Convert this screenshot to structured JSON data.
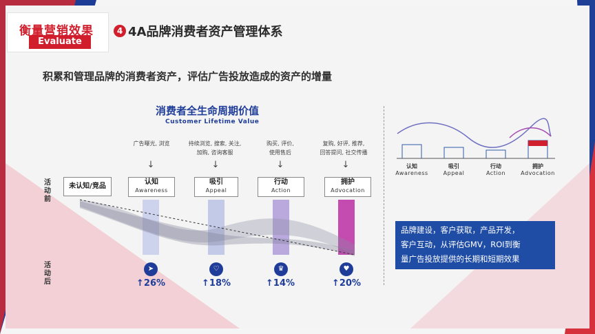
{
  "logo": {
    "cn": "衡量营销效果",
    "en": "Evaluate"
  },
  "header": {
    "number": "4",
    "title": "4A品牌消费者资产管理体系"
  },
  "subtitle": "积累和管理品牌的消费者资产，评估广告投放造成的资产的增量",
  "clv": {
    "title_cn": "消费者全生命周期价值",
    "title_en": "Customer Lifetime Value"
  },
  "side_labels": {
    "before": "活动前",
    "after": "活动后"
  },
  "unaware_label": "未认知/竞品",
  "stages": [
    {
      "cn": "认知",
      "en": "Awareness",
      "desc1": "广告曝光, 浏览",
      "desc2": "",
      "desc3": "",
      "icon": "paper-plane-icon",
      "pct": "↑26%"
    },
    {
      "cn": "吸引",
      "en": "Appeal",
      "desc1": "持续浏览, 搜索, 关注,",
      "desc2": "加购, 咨询客服",
      "desc3": "",
      "icon": "heart-icon",
      "pct": "↑18%"
    },
    {
      "cn": "行动",
      "en": "Action",
      "desc1": "购买, 评价,",
      "desc2": "使用售后",
      "desc3": "",
      "icon": "trophy-icon",
      "pct": "↑14%"
    },
    {
      "cn": "拥护",
      "en": "Advocation",
      "desc1": "复购, 好评, 推荐,",
      "desc2": "回答提问, 社交传播",
      "desc3": "",
      "icon": "shield-heart-icon",
      "pct": "↑20%"
    }
  ],
  "mini_chart": {
    "labels": [
      {
        "cn": "认知",
        "en": "Awareness"
      },
      {
        "cn": "吸引",
        "en": "Appeal"
      },
      {
        "cn": "行动",
        "en": "Action"
      },
      {
        "cn": "拥护",
        "en": "Advocation"
      }
    ]
  },
  "summary": {
    "line1": "品牌建设，客户获取，产品开发，",
    "line2": "客户互动，从评估GMV，ROI到衡",
    "line3": "量广告投放提供的长期和短期效果"
  },
  "colors": {
    "brand_red": "#d11e2c",
    "brand_blue": "#1f3d98",
    "box_blue": "#1f4da6"
  }
}
